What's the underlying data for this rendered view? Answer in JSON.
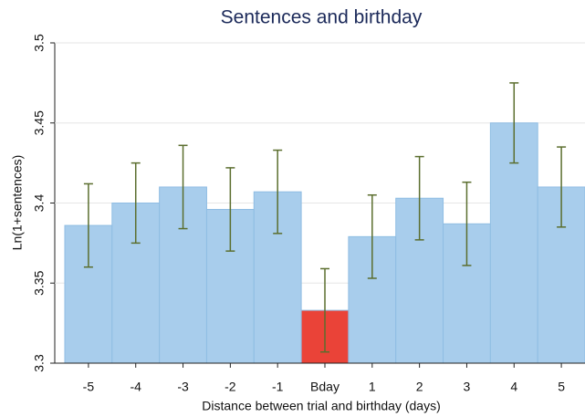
{
  "chart_data": {
    "type": "bar",
    "title": "Sentences and birthday",
    "x_label": "Distance between trial and birthday (days)",
    "y_label": "Ln(1+sentences)",
    "categories": [
      "-5",
      "-4",
      "-3",
      "-2",
      "-1",
      "Bday",
      "1",
      "2",
      "3",
      "4",
      "5"
    ],
    "values": [
      3.386,
      3.4,
      3.41,
      3.396,
      3.407,
      3.333,
      3.379,
      3.403,
      3.387,
      3.45,
      3.41
    ],
    "errors": [
      0.026,
      0.025,
      0.026,
      0.026,
      0.026,
      0.026,
      0.026,
      0.026,
      0.026,
      0.025,
      0.025
    ],
    "colors": [
      "#a8cdec",
      "#a8cdec",
      "#a8cdec",
      "#a8cdec",
      "#a8cdec",
      "#ea4338",
      "#a8cdec",
      "#a8cdec",
      "#a8cdec",
      "#a8cdec",
      "#a8cdec"
    ],
    "error_color": "#5b6e2e",
    "ylim": [
      3.3,
      3.5
    ],
    "yticks": [
      3.3,
      3.35,
      3.4,
      3.45,
      3.5
    ],
    "grid": true
  }
}
